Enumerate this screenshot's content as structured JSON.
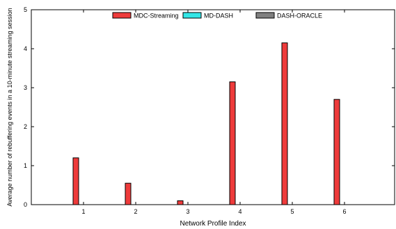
{
  "chart_data": {
    "type": "bar",
    "xlabel": "Network Profile Index",
    "ylabel": "Average number of rebuffering events in a 10-minute streaming session",
    "categories": [
      "1",
      "2",
      "3",
      "4",
      "5",
      "6"
    ],
    "ylim": [
      0,
      5
    ],
    "yticks": [
      "0",
      "1",
      "2",
      "3",
      "4",
      "5"
    ],
    "grid": false,
    "legend_position": "top-center",
    "series": [
      {
        "name": "MDC-Streaming",
        "color": "#ee3b3b",
        "values": [
          1.2,
          0.55,
          0.1,
          3.15,
          4.15,
          2.7
        ]
      },
      {
        "name": "MD-DASH",
        "color": "#33e6e6",
        "values": [
          0,
          0,
          0,
          0,
          0,
          0
        ]
      },
      {
        "name": "DASH-ORACLE",
        "color": "#808080",
        "values": [
          0,
          0,
          0,
          0,
          0,
          0
        ]
      }
    ]
  }
}
